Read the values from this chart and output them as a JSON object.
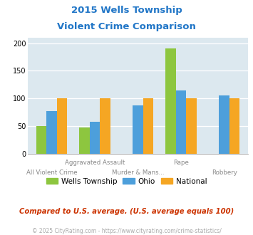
{
  "title_line1": "2015 Wells Township",
  "title_line2": "Violent Crime Comparison",
  "wells_values": [
    50,
    48,
    0,
    190,
    0
  ],
  "ohio_values": [
    77,
    58,
    87,
    115,
    105
  ],
  "national_values": [
    100,
    100,
    100,
    100,
    100
  ],
  "wells_color": "#8dc63f",
  "ohio_color": "#4d9fdb",
  "national_color": "#f5a623",
  "title_color": "#2176c7",
  "bg_color": "#dce8ef",
  "ylim": [
    0,
    210
  ],
  "yticks": [
    0,
    50,
    100,
    150,
    200
  ],
  "top_xlabels": [
    "",
    "Aggravated Assault",
    "",
    "Rape",
    ""
  ],
  "bot_xlabels": [
    "All Violent Crime",
    "",
    "Murder & Mans...",
    "",
    "Robbery"
  ],
  "footer_text": "Compared to U.S. average. (U.S. average equals 100)",
  "copyright_text": "© 2025 CityRating.com - https://www.cityrating.com/crime-statistics/",
  "legend_labels": [
    "Wells Township",
    "Ohio",
    "National"
  ]
}
